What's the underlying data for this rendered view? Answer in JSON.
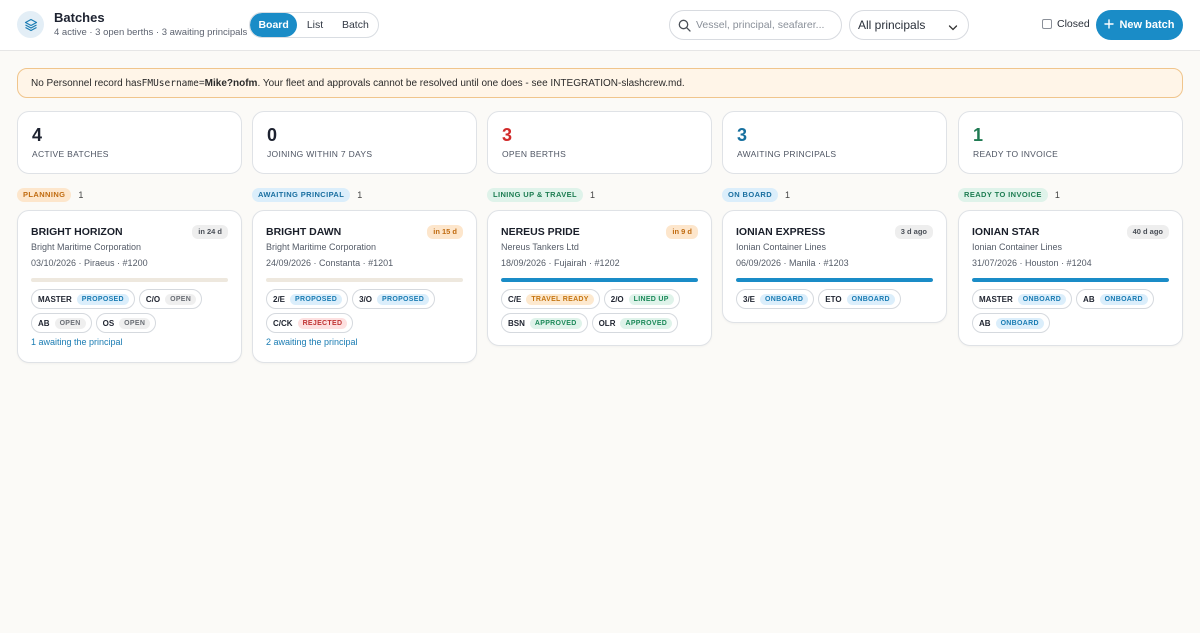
{
  "header": {
    "title": "Batches",
    "subtitle": "4 active · 3 open berths · 3 awaiting principals",
    "views": [
      "Board",
      "List",
      "Batch"
    ],
    "active_view": "Board",
    "search_placeholder": "Vessel, principal, seafarer...",
    "principal_filter": "All principals",
    "closed_label": "Closed",
    "new_batch_label": "New batch",
    "accent": "#1a8cc7"
  },
  "banner": {
    "prefix": "No Personnel record has ",
    "field": "FMUsername",
    "equals": " = ",
    "username": "Mike?nofm",
    "suffix": ". Your fleet and approvals cannot be resolved until one does - see INTEGRATION-slashcrew.md."
  },
  "stats": [
    {
      "value": "4",
      "label": "ACTIVE BATCHES",
      "color": "#1d2230"
    },
    {
      "value": "0",
      "label": "JOINING WITHIN 7 DAYS",
      "color": "#1d2230"
    },
    {
      "value": "3",
      "label": "OPEN BERTHS",
      "color": "#d12a2a"
    },
    {
      "value": "3",
      "label": "AWAITING PRINCIPALS",
      "color": "#17709f"
    },
    {
      "value": "1",
      "label": "READY TO INVOICE",
      "color": "#1f7a52"
    }
  ],
  "columns": [
    {
      "name": "PLANNING",
      "count": "1",
      "pill_bg": "#fde6cc",
      "pill_fg": "#c06b10",
      "card": {
        "vessel": "BRIGHT HORIZON",
        "principal": "Bright Maritime Corporation",
        "meta": "03/10/2026 · Piraeus · #1200",
        "due": "in 24 d",
        "due_bg": "#eeeeee",
        "due_fg": "#4a4f57",
        "progress": 0,
        "roles": [
          {
            "code": "MASTER",
            "status": "PROPOSED",
            "cls": "st-proposed"
          },
          {
            "code": "C/O",
            "status": "OPEN",
            "cls": "st-open"
          },
          {
            "code": "AB",
            "status": "OPEN",
            "cls": "st-open"
          },
          {
            "code": "OS",
            "status": "OPEN",
            "cls": "st-open"
          }
        ],
        "link": "1 awaiting the principal"
      }
    },
    {
      "name": "AWAITING PRINCIPAL",
      "count": "1",
      "pill_bg": "#dbeefb",
      "pill_fg": "#1a6fa0",
      "card": {
        "vessel": "BRIGHT DAWN",
        "principal": "Bright Maritime Corporation",
        "meta": "24/09/2026 · Constanta · #1201",
        "due": "in 15 d",
        "due_bg": "#fde6cc",
        "due_fg": "#c06b10",
        "progress": 0,
        "roles": [
          {
            "code": "2/E",
            "status": "PROPOSED",
            "cls": "st-proposed"
          },
          {
            "code": "3/O",
            "status": "PROPOSED",
            "cls": "st-proposed"
          },
          {
            "code": "C/CK",
            "status": "REJECTED",
            "cls": "st-rejected"
          }
        ],
        "link": "2 awaiting the principal"
      }
    },
    {
      "name": "LINING UP & TRAVEL",
      "count": "1",
      "pill_bg": "#dff3ea",
      "pill_fg": "#1d7d52",
      "card": {
        "vessel": "NEREUS PRIDE",
        "principal": "Nereus Tankers Ltd",
        "meta": "18/09/2026 · Fujairah · #1202",
        "due": "in 9 d",
        "due_bg": "#fde6cc",
        "due_fg": "#c06b10",
        "progress": 1,
        "roles": [
          {
            "code": "C/E",
            "status": "TRAVEL READY",
            "cls": "st-travel"
          },
          {
            "code": "2/O",
            "status": "LINED UP",
            "cls": "st-linedup"
          },
          {
            "code": "BSN",
            "status": "APPROVED",
            "cls": "st-approved"
          },
          {
            "code": "OLR",
            "status": "APPROVED",
            "cls": "st-approved"
          }
        ],
        "link": ""
      }
    },
    {
      "name": "ON BOARD",
      "count": "1",
      "pill_bg": "#dbeefb",
      "pill_fg": "#1a6fa0",
      "card": {
        "vessel": "IONIAN EXPRESS",
        "principal": "Ionian Container Lines",
        "meta": "06/09/2026 · Manila · #1203",
        "due": "3 d ago",
        "due_bg": "#eeeeee",
        "due_fg": "#4a4f57",
        "progress": 1,
        "roles": [
          {
            "code": "3/E",
            "status": "ONBOARD",
            "cls": "st-onboard"
          },
          {
            "code": "ETO",
            "status": "ONBOARD",
            "cls": "st-onboard"
          }
        ],
        "link": ""
      }
    },
    {
      "name": "READY TO INVOICE",
      "count": "1",
      "pill_bg": "#dff3ea",
      "pill_fg": "#1d7d52",
      "card": {
        "vessel": "IONIAN STAR",
        "principal": "Ionian Container Lines",
        "meta": "31/07/2026 · Houston · #1204",
        "due": "40 d ago",
        "due_bg": "#eeeeee",
        "due_fg": "#4a4f57",
        "progress": 1,
        "roles": [
          {
            "code": "MASTER",
            "status": "ONBOARD",
            "cls": "st-onboard"
          },
          {
            "code": "AB",
            "status": "ONBOARD",
            "cls": "st-onboard"
          },
          {
            "code": "AB",
            "status": "ONBOARD",
            "cls": "st-onboard"
          }
        ],
        "link": ""
      }
    }
  ]
}
